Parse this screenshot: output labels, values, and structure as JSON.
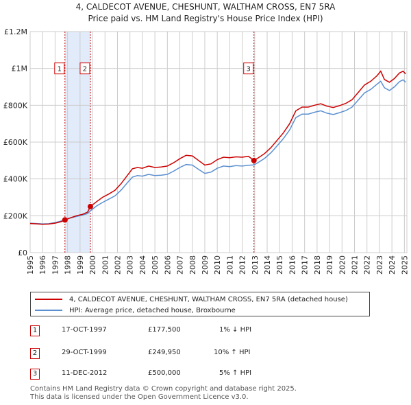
{
  "title_line1": "4, CALDECOT AVENUE, CHESHUNT, WALTHAM CROSS, EN7 5RA",
  "title_line2": "Price paid vs. HM Land Registry's House Price Index (HPI)",
  "colors": {
    "property": "#cc0000",
    "hpi": "#5b8fd0",
    "shade": "#dbe6f7",
    "grid": "#cccccc"
  },
  "chart_data": {
    "type": "line",
    "title": "Price paid vs. HM Land Registry's House Price Index (HPI)",
    "xlim": [
      1995,
      2025.2
    ],
    "ylim": [
      0,
      1200000
    ],
    "y_ticks": [
      {
        "value": 0,
        "label": "£0"
      },
      {
        "value": 200000,
        "label": "£200K"
      },
      {
        "value": 400000,
        "label": "£400K"
      },
      {
        "value": 600000,
        "label": "£600K"
      },
      {
        "value": 800000,
        "label": "£800K"
      },
      {
        "value": 1000000,
        "label": "£1M"
      },
      {
        "value": 1200000,
        "label": "£1.2M"
      }
    ],
    "x_ticks": [
      "1995",
      "1996",
      "1997",
      "1998",
      "1999",
      "2000",
      "2001",
      "2002",
      "2003",
      "2004",
      "2005",
      "2006",
      "2007",
      "2008",
      "2009",
      "2010",
      "2011",
      "2012",
      "2013",
      "2014",
      "2015",
      "2016",
      "2017",
      "2018",
      "2019",
      "2020",
      "2021",
      "2022",
      "2023",
      "2024",
      "2025"
    ],
    "series": [
      {
        "name": "4, CALDECOT AVENUE, CHESHUNT, WALTHAM CROSS, EN7 5RA (detached house)",
        "color": "#cc0000",
        "points": [
          [
            1995.0,
            158000
          ],
          [
            1995.5,
            156000
          ],
          [
            1996.0,
            154000
          ],
          [
            1996.5,
            155000
          ],
          [
            1997.0,
            160000
          ],
          [
            1997.5,
            168000
          ],
          [
            1997.8,
            177500
          ],
          [
            1998.2,
            188000
          ],
          [
            1998.7,
            200000
          ],
          [
            1999.2,
            208000
          ],
          [
            1999.6,
            220000
          ],
          [
            1999.83,
            249950
          ],
          [
            2000.3,
            275000
          ],
          [
            2000.8,
            300000
          ],
          [
            2001.3,
            318000
          ],
          [
            2001.8,
            338000
          ],
          [
            2002.3,
            375000
          ],
          [
            2002.8,
            420000
          ],
          [
            2003.2,
            455000
          ],
          [
            2003.6,
            462000
          ],
          [
            2004.0,
            458000
          ],
          [
            2004.5,
            470000
          ],
          [
            2005.0,
            462000
          ],
          [
            2005.5,
            465000
          ],
          [
            2006.0,
            470000
          ],
          [
            2006.5,
            488000
          ],
          [
            2007.0,
            510000
          ],
          [
            2007.5,
            528000
          ],
          [
            2008.0,
            525000
          ],
          [
            2008.5,
            500000
          ],
          [
            2009.0,
            475000
          ],
          [
            2009.5,
            482000
          ],
          [
            2010.0,
            505000
          ],
          [
            2010.5,
            518000
          ],
          [
            2011.0,
            515000
          ],
          [
            2011.5,
            520000
          ],
          [
            2012.0,
            518000
          ],
          [
            2012.5,
            523000
          ],
          [
            2012.94,
            500000
          ],
          [
            2013.3,
            515000
          ],
          [
            2013.8,
            538000
          ],
          [
            2014.3,
            570000
          ],
          [
            2014.8,
            610000
          ],
          [
            2015.3,
            650000
          ],
          [
            2015.8,
            700000
          ],
          [
            2016.3,
            770000
          ],
          [
            2016.8,
            790000
          ],
          [
            2017.3,
            790000
          ],
          [
            2017.8,
            800000
          ],
          [
            2018.3,
            808000
          ],
          [
            2018.8,
            795000
          ],
          [
            2019.3,
            788000
          ],
          [
            2019.8,
            798000
          ],
          [
            2020.3,
            810000
          ],
          [
            2020.8,
            830000
          ],
          [
            2021.3,
            870000
          ],
          [
            2021.8,
            910000
          ],
          [
            2022.3,
            930000
          ],
          [
            2022.8,
            960000
          ],
          [
            2023.1,
            985000
          ],
          [
            2023.4,
            940000
          ],
          [
            2023.8,
            925000
          ],
          [
            2024.2,
            945000
          ],
          [
            2024.6,
            975000
          ],
          [
            2024.9,
            985000
          ],
          [
            2025.1,
            970000
          ]
        ]
      },
      {
        "name": "HPI: Average price, detached house, Broxbourne",
        "color": "#5b8fd0",
        "points": [
          [
            1995.0,
            160000
          ],
          [
            1995.5,
            158000
          ],
          [
            1996.0,
            156000
          ],
          [
            1996.5,
            157000
          ],
          [
            1997.0,
            163000
          ],
          [
            1997.5,
            172000
          ],
          [
            1997.8,
            180000
          ],
          [
            1998.2,
            188000
          ],
          [
            1998.7,
            196000
          ],
          [
            1999.2,
            204000
          ],
          [
            1999.6,
            212000
          ],
          [
            1999.83,
            227000
          ],
          [
            2000.3,
            252000
          ],
          [
            2000.8,
            272000
          ],
          [
            2001.3,
            290000
          ],
          [
            2001.8,
            308000
          ],
          [
            2002.3,
            340000
          ],
          [
            2002.8,
            380000
          ],
          [
            2003.2,
            410000
          ],
          [
            2003.6,
            418000
          ],
          [
            2004.0,
            415000
          ],
          [
            2004.5,
            425000
          ],
          [
            2005.0,
            418000
          ],
          [
            2005.5,
            420000
          ],
          [
            2006.0,
            425000
          ],
          [
            2006.5,
            442000
          ],
          [
            2007.0,
            462000
          ],
          [
            2007.5,
            478000
          ],
          [
            2008.0,
            475000
          ],
          [
            2008.5,
            452000
          ],
          [
            2009.0,
            430000
          ],
          [
            2009.5,
            437000
          ],
          [
            2010.0,
            458000
          ],
          [
            2010.5,
            470000
          ],
          [
            2011.0,
            467000
          ],
          [
            2011.5,
            472000
          ],
          [
            2012.0,
            470000
          ],
          [
            2012.5,
            474000
          ],
          [
            2012.94,
            476000
          ],
          [
            2013.3,
            490000
          ],
          [
            2013.8,
            512000
          ],
          [
            2014.3,
            542000
          ],
          [
            2014.8,
            580000
          ],
          [
            2015.3,
            619000
          ],
          [
            2015.8,
            666000
          ],
          [
            2016.3,
            733000
          ],
          [
            2016.8,
            752000
          ],
          [
            2017.3,
            752000
          ],
          [
            2017.8,
            762000
          ],
          [
            2018.3,
            770000
          ],
          [
            2018.8,
            757000
          ],
          [
            2019.3,
            750000
          ],
          [
            2019.8,
            760000
          ],
          [
            2020.3,
            771000
          ],
          [
            2020.8,
            790000
          ],
          [
            2021.3,
            828000
          ],
          [
            2021.8,
            867000
          ],
          [
            2022.3,
            886000
          ],
          [
            2022.8,
            914000
          ],
          [
            2023.1,
            930000
          ],
          [
            2023.4,
            895000
          ],
          [
            2023.8,
            880000
          ],
          [
            2024.2,
            900000
          ],
          [
            2024.6,
            928000
          ],
          [
            2024.9,
            938000
          ],
          [
            2025.1,
            925000
          ]
        ]
      }
    ],
    "sales": [
      {
        "id": "1",
        "date": "17-OCT-1997",
        "x": 1997.79,
        "price": 177500,
        "price_label": "£177,500",
        "hpi_label": "1% ↓ HPI"
      },
      {
        "id": "2",
        "date": "29-OCT-1999",
        "x": 1999.83,
        "price": 249950,
        "price_label": "£249,950",
        "hpi_label": "10% ↑ HPI"
      },
      {
        "id": "3",
        "date": "11-DEC-2012",
        "x": 2012.94,
        "price": 500000,
        "price_label": "£500,000",
        "hpi_label": "5% ↑ HPI"
      }
    ],
    "shaded_range": [
      1997.79,
      1999.83
    ],
    "marker_label_value": 1000000
  },
  "legend": {
    "property": "4, CALDECOT AVENUE, CHESHUNT, WALTHAM CROSS, EN7 5RA (detached house)",
    "hpi": "HPI: Average price, detached house, Broxbourne"
  },
  "footer": {
    "line1": "Contains HM Land Registry data © Crown copyright and database right 2025.",
    "line2": "This data is licensed under the Open Government Licence v3.0."
  }
}
